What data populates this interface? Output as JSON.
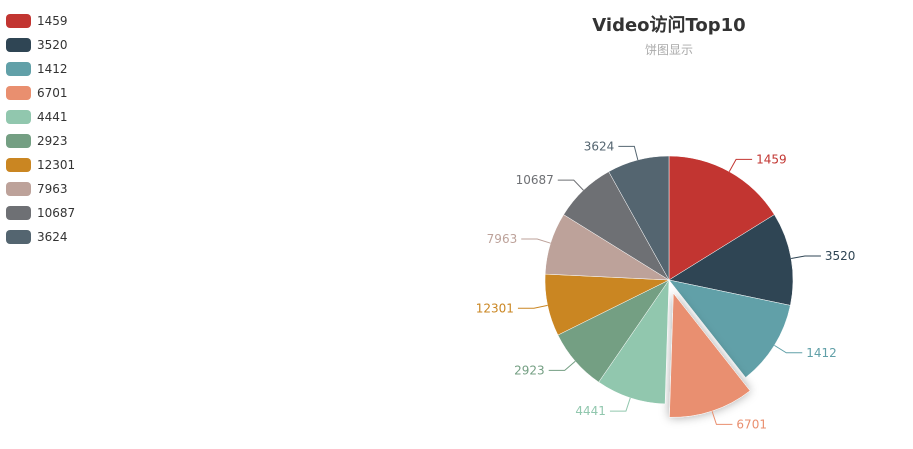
{
  "chart_data": {
    "type": "pie",
    "title": "Video访问Top10",
    "subtitle": "饼图显示",
    "legend_position": "top-left",
    "slices": [
      {
        "label": "1459",
        "value": 16,
        "color": "#c23531"
      },
      {
        "label": "3520",
        "value": 12,
        "color": "#2f4554"
      },
      {
        "label": "1412",
        "value": 11,
        "color": "#61a0a8"
      },
      {
        "label": "6701",
        "value": 11,
        "color": "#e98f6f",
        "highlighted": true
      },
      {
        "label": "4441",
        "value": 9,
        "color": "#91c7ae"
      },
      {
        "label": "2923",
        "value": 8,
        "color": "#749f83"
      },
      {
        "label": "12301",
        "value": 8,
        "color": "#ca8622"
      },
      {
        "label": "7963",
        "value": 8,
        "color": "#bda29a"
      },
      {
        "label": "10687",
        "value": 8,
        "color": "#6e7074"
      },
      {
        "label": "3624",
        "value": 8,
        "color": "#546570"
      }
    ]
  }
}
